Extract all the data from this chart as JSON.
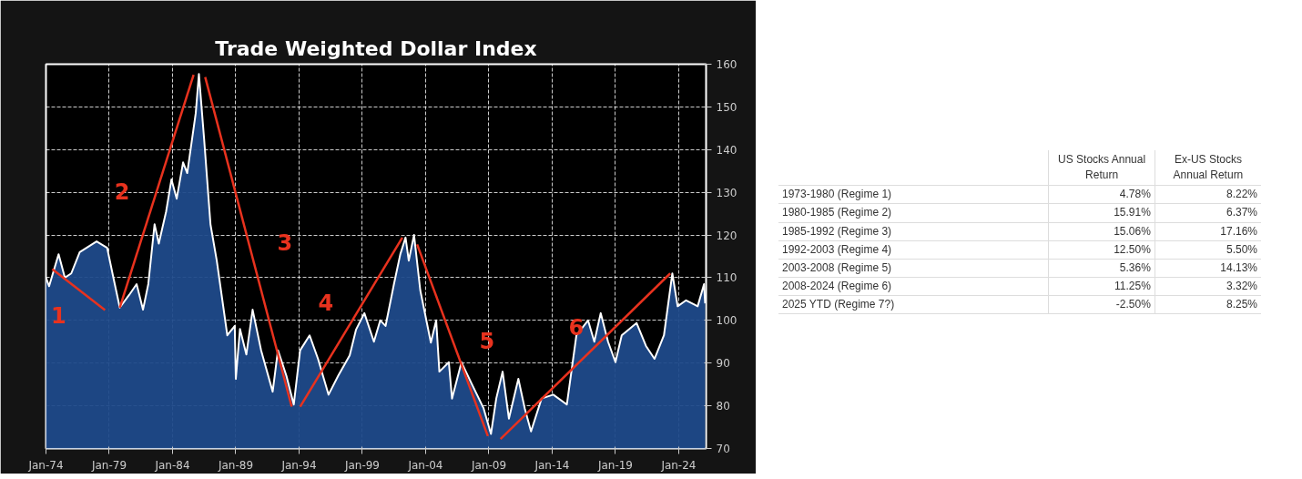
{
  "chart_data": [
    {
      "type": "area",
      "title": "Trade Weighted Dollar Index",
      "xlim": [
        "1974-01",
        "2026-03"
      ],
      "xticks": [
        {
          "value": "1974-01",
          "label": "Jan-74"
        },
        {
          "value": "1979-01",
          "label": "Jan-79"
        },
        {
          "value": "1984-01",
          "label": "Jan-84"
        },
        {
          "value": "1989-01",
          "label": "Jan-89"
        },
        {
          "value": "1994-01",
          "label": "Jan-94"
        },
        {
          "value": "1999-01",
          "label": "Jan-99"
        },
        {
          "value": "2004-01",
          "label": "Jan-04"
        },
        {
          "value": "2009-01",
          "label": "Jan-09"
        },
        {
          "value": "2014-01",
          "label": "Jan-14"
        },
        {
          "value": "2019-01",
          "label": "Jan-19"
        },
        {
          "value": "2024-01",
          "label": "Jan-24"
        }
      ],
      "ylim": [
        70,
        160
      ],
      "yticks": [
        70,
        80,
        90,
        100,
        110,
        120,
        130,
        140,
        150,
        160
      ],
      "grid": true,
      "series": [
        {
          "type": "area",
          "color": "#1f4a8a",
          "x": [
            "1974-01",
            "1974-04",
            "1975-01",
            "1975-07",
            "1976-01",
            "1976-09",
            "1978-01",
            "1978-11",
            "1979-05",
            "1979-11",
            "1980-08",
            "1981-03",
            "1981-09",
            "1982-02",
            "1982-08",
            "1982-12",
            "1983-07",
            "1983-12",
            "1984-05",
            "1984-11",
            "1985-03",
            "1985-11",
            "1986-02",
            "1986-07",
            "1987-01",
            "1987-07",
            "1988-05",
            "1988-12",
            "1989-01",
            "1989-05",
            "1989-11",
            "1990-05",
            "1991-01",
            "1991-12",
            "1992-05",
            "1993-01",
            "1993-08",
            "1994-02",
            "1994-11",
            "1995-07",
            "1996-05",
            "1997-02",
            "1998-01",
            "1998-07",
            "1999-03",
            "1999-12",
            "2000-06",
            "2000-11",
            "2001-07",
            "2002-01",
            "2002-06",
            "2002-09",
            "2003-02",
            "2003-08",
            "2004-06",
            "2004-11",
            "2005-02",
            "2005-11",
            "2006-02",
            "2006-11",
            "2007-09",
            "2008-08",
            "2009-03",
            "2009-08",
            "2010-02",
            "2010-08",
            "2011-05",
            "2011-11",
            "2012-05",
            "2013-03",
            "2014-02",
            "2015-03",
            "2015-12",
            "2016-11",
            "2017-05",
            "2017-11",
            "2018-06",
            "2019-01",
            "2019-07",
            "2020-09",
            "2021-06",
            "2022-02",
            "2022-11",
            "2023-07",
            "2023-12",
            "2024-08",
            "2025-07",
            "2026-01",
            "2026-02"
          ],
          "values": [
            110,
            108,
            115.5,
            110,
            111,
            116,
            118.5,
            117,
            110,
            103,
            106,
            108.5,
            102.5,
            108.5,
            122.5,
            118,
            125.5,
            133,
            128.5,
            137,
            134.5,
            148.5,
            157.7,
            142.5,
            122.5,
            114,
            96.5,
            98.7,
            86.3,
            98,
            92,
            102.5,
            93,
            83.3,
            93,
            87,
            80.3,
            93,
            96.5,
            91,
            82.6,
            87,
            91.8,
            97.8,
            101.7,
            95,
            100,
            98.7,
            108.5,
            115.5,
            119.4,
            114,
            120,
            107,
            94.8,
            100,
            88,
            90.2,
            81.7,
            90.2,
            85,
            79.4,
            73.4,
            81.7,
            88,
            77,
            86.3,
            79.4,
            74,
            81.7,
            82.6,
            80.3,
            96.5,
            100,
            95,
            101.7,
            95,
            90.2,
            96.5,
            99.4,
            94,
            91,
            96.5,
            111,
            103.3,
            104.7,
            103.3,
            108.5,
            104
          ]
        },
        {
          "type": "line",
          "color": "#e8321e",
          "x": [
            "1974-07",
            "1978-09"
          ],
          "values": [
            112,
            102.4
          ]
        },
        {
          "type": "line",
          "color": "#e8321e",
          "x": [
            "1979-11",
            "1985-09"
          ],
          "values": [
            103,
            157.5
          ]
        },
        {
          "type": "line",
          "color": "#e8321e",
          "x": [
            "1986-08",
            "1993-06"
          ],
          "values": [
            157,
            79.8
          ]
        },
        {
          "type": "line",
          "color": "#e8321e",
          "x": [
            "1994-02",
            "2002-03"
          ],
          "values": [
            79.8,
            119.4
          ]
        },
        {
          "type": "line",
          "color": "#e8321e",
          "x": [
            "2003-05",
            "2008-12"
          ],
          "values": [
            117.8,
            72.9
          ]
        },
        {
          "type": "line",
          "color": "#e8321e",
          "x": [
            "2009-12",
            "2023-05"
          ],
          "values": [
            72.2,
            111
          ]
        }
      ],
      "annotations": [
        "1",
        "2",
        "3",
        "4",
        "5",
        "6"
      ]
    },
    {
      "type": "other",
      "categories": [
        "1973-1980 (Regime 1)",
        "1980-1985 (Regime 2)",
        "1985-1992 (Regime 3)",
        "1992-2003 (Regime 4)",
        "2003-2008 (Regime 5)",
        "2008-2024 (Regime 6)",
        "2025 YTD (Regime 7?)"
      ],
      "series": [
        {
          "name": "US Stocks Annual Return",
          "values": [
            4.78,
            15.91,
            15.06,
            12.5,
            5.36,
            11.25,
            -2.5
          ],
          "value_labels": [
            "4.78%",
            "15.91%",
            "15.06%",
            "12.50%",
            "5.36%",
            "11.25%",
            "-2.50%"
          ]
        },
        {
          "name": "Ex-US Stocks Annual Return",
          "values": [
            8.22,
            6.37,
            17.16,
            5.5,
            14.13,
            3.32,
            8.25
          ],
          "value_labels": [
            "8.22%",
            "6.37%",
            "17.16%",
            "5.50%",
            "14.13%",
            "3.32%",
            "8.25%"
          ]
        }
      ]
    }
  ]
}
